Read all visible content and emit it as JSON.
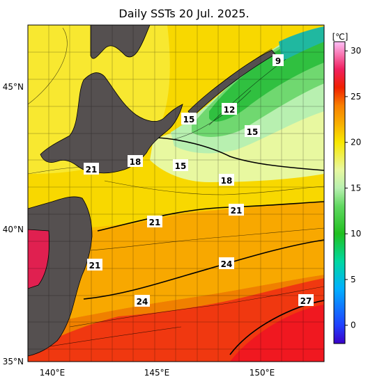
{
  "title": "Daily SSTs 20 Jul. 2025.",
  "colorbar": {
    "unit": "[℃]",
    "ticks": [
      "30",
      "25",
      "20",
      "15",
      "10",
      "5",
      "0"
    ],
    "stops": [
      {
        "v": -2,
        "color": "#3a00c8"
      },
      {
        "v": 0,
        "color": "#2040ff"
      },
      {
        "v": 4,
        "color": "#00b0ff"
      },
      {
        "v": 7,
        "color": "#00d8a0"
      },
      {
        "v": 10,
        "color": "#20c020"
      },
      {
        "v": 13,
        "color": "#60d860"
      },
      {
        "v": 15,
        "color": "#b8f0b0"
      },
      {
        "v": 17,
        "color": "#e8f8a0"
      },
      {
        "v": 20,
        "color": "#f8e800"
      },
      {
        "v": 22,
        "color": "#f8b000"
      },
      {
        "v": 24,
        "color": "#f88000"
      },
      {
        "v": 26,
        "color": "#f02000"
      },
      {
        "v": 28,
        "color": "#f02060"
      },
      {
        "v": 31,
        "color": "#ffc0f8"
      }
    ]
  },
  "axes": {
    "lat_labels": [
      "45°N",
      "40°N",
      "35°N"
    ],
    "lon_labels": [
      "140°E",
      "145°E",
      "150°E"
    ],
    "lat_range": [
      35,
      47.5
    ],
    "lon_range": [
      139,
      153
    ]
  },
  "contour_labels": [
    "9",
    "12",
    "15",
    "15",
    "15",
    "18",
    "18",
    "21",
    "21",
    "21",
    "21",
    "24",
    "24",
    "27"
  ],
  "land_color": "#555050",
  "chart_data": {
    "type": "heatmap",
    "title": "Daily SSTs 20 Jul. 2025.",
    "unit": "℃",
    "contour_labels": [
      9,
      12,
      15,
      15,
      15,
      18,
      18,
      21,
      21,
      21,
      21,
      24,
      24,
      27
    ],
    "colorbar_range": [
      -1,
      31
    ],
    "lat_range": [
      35,
      47.5
    ],
    "lon_range": [
      139,
      153
    ]
  }
}
